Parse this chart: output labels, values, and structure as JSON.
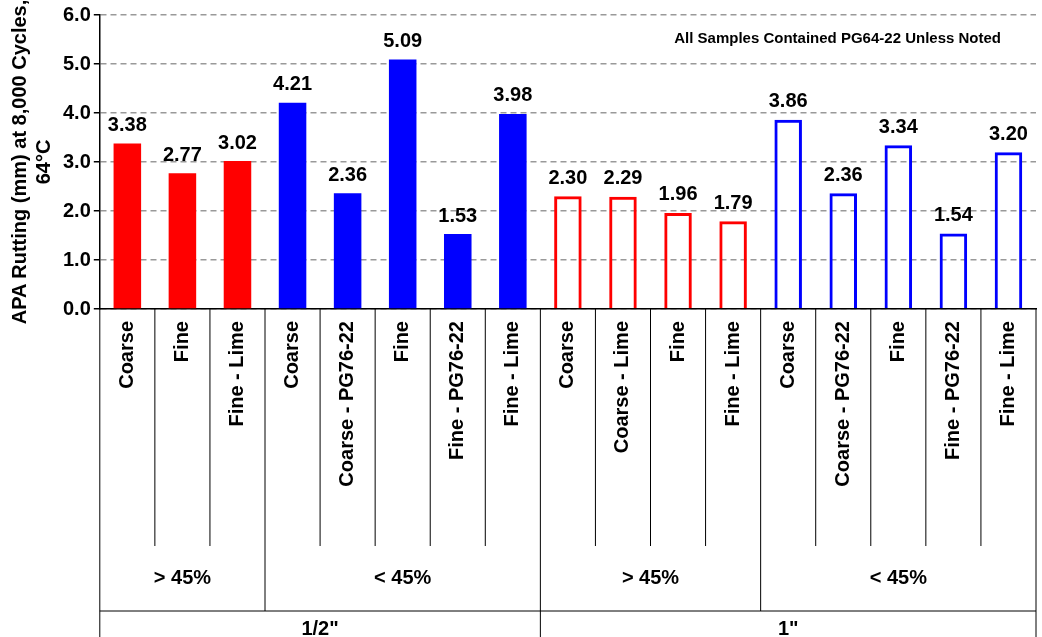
{
  "chart_data": {
    "type": "bar",
    "ylabel": "APA Rutting (mm) at 8,000 Cycles, 64°C",
    "categories": [
      "Coarse",
      "Fine",
      "Fine - Lime",
      "Coarse",
      "Coarse - PG76-22",
      "Fine",
      "Fine - PG76-22",
      "Fine - Lime",
      "Coarse",
      "Coarse - Lime",
      "Fine",
      "Fine - Lime",
      "Coarse",
      "Coarse - PG76-22",
      "Fine",
      "Fine - PG76-22",
      "Fine - Lime"
    ],
    "series": [
      {
        "colors": [
          "#ff0000",
          "#ff0000",
          "#ff0000",
          "#0000ff",
          "#0000ff",
          "#0000ff",
          "#0000ff",
          "#0000ff",
          null,
          null,
          null,
          null,
          null,
          null,
          null,
          null,
          null
        ],
        "values": [
          3.38,
          2.77,
          3.02,
          4.21,
          2.36,
          5.09,
          1.53,
          3.98,
          null,
          null,
          null,
          null,
          null,
          null,
          null,
          null,
          null
        ],
        "value_labels": [
          "3.38",
          "2.77",
          "3.02",
          "4.21",
          "2.36",
          "5.09",
          "1.53",
          "3.98",
          null,
          null,
          null,
          null,
          null,
          null,
          null,
          null,
          null
        ]
      },
      {
        "colors": [
          null,
          null,
          null,
          null,
          null,
          null,
          null,
          null,
          "#ff0000",
          "#ff0000",
          "#ff0000",
          "#ff0000",
          "#0000ff",
          "#0000ff",
          "#0000ff",
          "#0000ff",
          "#0000ff"
        ],
        "values": [
          null,
          null,
          null,
          null,
          null,
          null,
          null,
          null,
          2.3,
          2.29,
          1.96,
          1.79,
          3.86,
          2.36,
          3.34,
          1.54,
          3.2
        ],
        "value_labels": [
          null,
          null,
          null,
          null,
          null,
          null,
          null,
          null,
          "2.30",
          "2.29",
          "1.96",
          "1.79",
          "3.86",
          "2.36",
          "3.34",
          "1.54",
          "3.20"
        ]
      }
    ],
    "ylim": [
      0,
      6
    ],
    "yticks": [
      {
        "value": 0,
        "label": "0.0"
      },
      {
        "value": 1,
        "label": "1.0"
      },
      {
        "value": 2,
        "label": "2.0"
      },
      {
        "value": 3,
        "label": "3.0"
      },
      {
        "value": 4,
        "label": "4.0"
      },
      {
        "value": 5,
        "label": "5.0"
      },
      {
        "value": 6,
        "label": "6.0"
      }
    ],
    "grid": "y",
    "line_style": "dashed",
    "legend": false,
    "annotations": [
      "All Samples Contained PG64-22 Unless Noted",
      "> 45%",
      "< 45%",
      "> 45%",
      "< 45%",
      "1/2\"",
      "1\""
    ]
  }
}
